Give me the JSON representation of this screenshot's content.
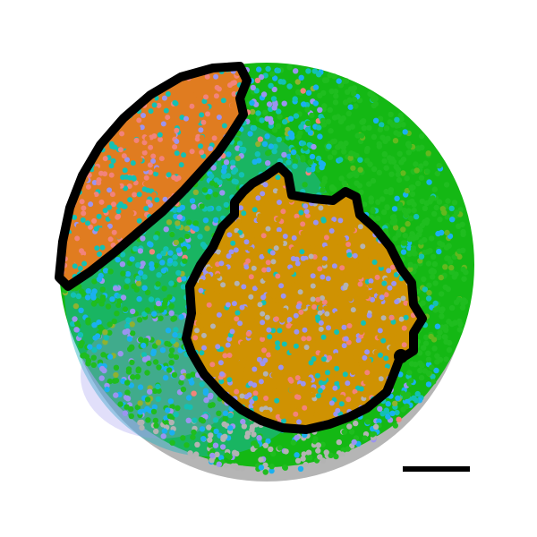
{
  "figure": {
    "kind": "spatial-scatter",
    "colors": {
      "background": "#ffffff",
      "gray": "#b3b3b3",
      "green": "#1fbd1f",
      "dark_green": "#64b81e",
      "cyan": "#13c1b4",
      "blue": "#1ab0f0",
      "lavender": "#9b94f0",
      "pink": "#f2837b",
      "orange": "#e07c20",
      "gold": "#cf9202",
      "olive": "#8fb230",
      "outline": "#000000"
    },
    "regions": [
      {
        "name": "leaf-region",
        "dominant_color": "orange"
      },
      {
        "name": "round-region",
        "dominant_color": "gold"
      }
    ],
    "scale_bar": {
      "label": ""
    }
  }
}
